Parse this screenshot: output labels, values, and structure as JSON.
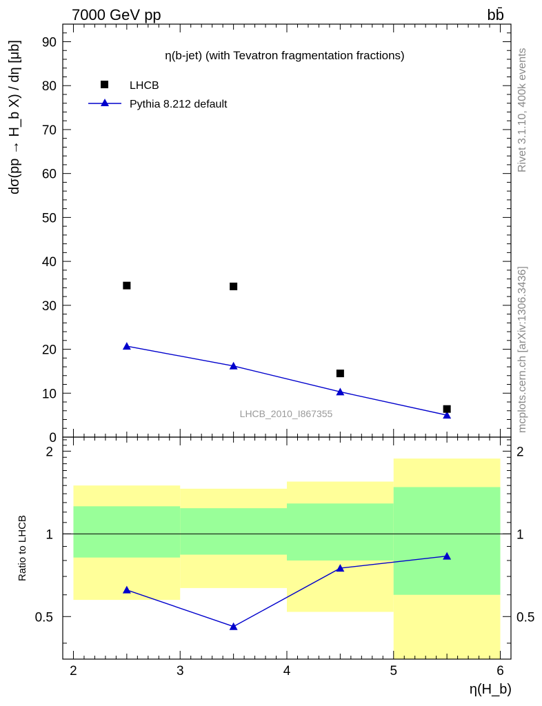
{
  "header": {
    "energy_label": "7000 GeV pp",
    "process_label": "bb̄",
    "side_rivet": "Rivet 3.1.10,  400k events",
    "side_site": "mcplots.cern.ch [arXiv:1306.3436]"
  },
  "chart_data": [
    {
      "type": "scatter",
      "title": "η(b-jet) (with Tevatron fragmentation fractions)",
      "watermark": "LHCB_2010_I867355",
      "ylabel": "dσ(pp → H_b X) / dη [μb]",
      "xlim": [
        1.9,
        6.1
      ],
      "ylim": [
        0,
        94
      ],
      "yticks": [
        0,
        10,
        20,
        30,
        40,
        50,
        60,
        70,
        80,
        90
      ],
      "legend_position": "top-left",
      "series": [
        {
          "name": "LHCB",
          "marker": "square",
          "color": "#000000",
          "x": [
            2.5,
            3.5,
            4.5,
            5.5
          ],
          "y": [
            34.5,
            34.3,
            14.5,
            6.4
          ]
        },
        {
          "name": "Pythia 8.212 default",
          "marker": "triangle",
          "color": "#0000cc",
          "x": [
            2.5,
            3.5,
            4.5,
            5.5
          ],
          "y": [
            20.7,
            16.2,
            10.3,
            5.0
          ]
        }
      ]
    },
    {
      "type": "line",
      "ylabel": "Ratio to LHCB",
      "xlabel": "η(H_b)",
      "xlim": [
        1.9,
        6.1
      ],
      "ylim": [
        0.35,
        2.25
      ],
      "yticks": [
        0.5,
        1,
        2
      ],
      "xticks": [
        2,
        3,
        4,
        5,
        6
      ],
      "reference_line": 1,
      "bands": [
        {
          "x": [
            2,
            3
          ],
          "outer": [
            0.575,
            1.5
          ],
          "inner": [
            0.82,
            1.26
          ]
        },
        {
          "x": [
            3,
            4
          ],
          "outer": [
            0.635,
            1.46
          ],
          "inner": [
            0.84,
            1.24
          ]
        },
        {
          "x": [
            4,
            5
          ],
          "outer": [
            0.52,
            1.55
          ],
          "inner": [
            0.8,
            1.29
          ]
        },
        {
          "x": [
            5,
            6
          ],
          "outer": [
            0.35,
            1.88
          ],
          "inner": [
            0.6,
            1.48
          ]
        }
      ],
      "band_colors": {
        "outer": "#ffff99",
        "inner": "#99ff99"
      },
      "series": [
        {
          "name": "Pythia 8.212 default",
          "color": "#0000cc",
          "x": [
            2.5,
            3.5,
            4.5,
            5.5
          ],
          "y": [
            0.625,
            0.46,
            0.75,
            0.83
          ]
        }
      ]
    }
  ]
}
